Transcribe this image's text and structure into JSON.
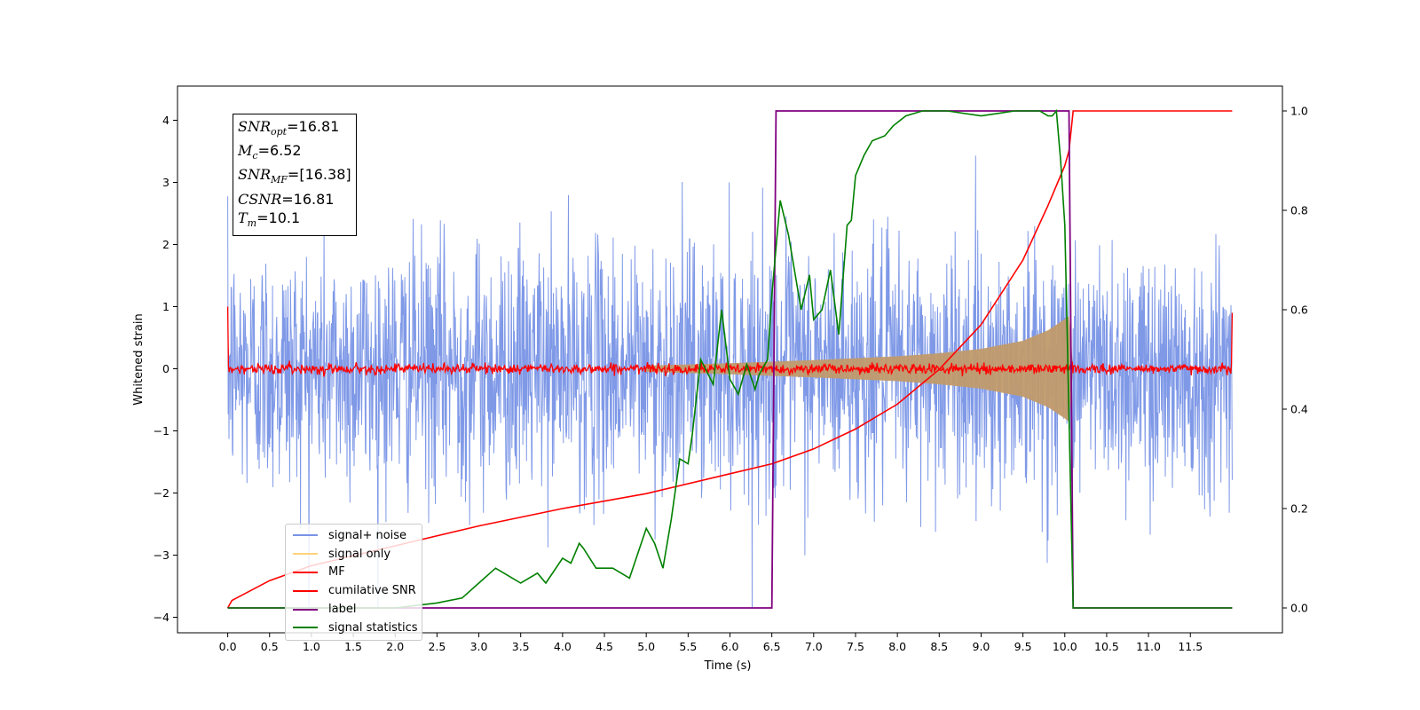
{
  "chart_data": {
    "type": "line",
    "xlabel": "Time (s)",
    "ylabel": "Whitened strain",
    "xlim": [
      -0.6,
      12.6
    ],
    "ylim": [
      -4.25,
      4.55
    ],
    "ylim_right": [
      -0.05,
      1.05
    ],
    "x_ticks": [
      "0.0",
      "0.5",
      "1.0",
      "1.5",
      "2.0",
      "2.5",
      "3.0",
      "3.5",
      "4.0",
      "4.5",
      "5.0",
      "5.5",
      "6.0",
      "6.5",
      "7.0",
      "7.5",
      "8.0",
      "8.5",
      "9.0",
      "9.5",
      "10.0",
      "10.5",
      "11.0",
      "11.5"
    ],
    "y_ticks_left": [
      "−4",
      "−3",
      "−2",
      "−1",
      "0",
      "1",
      "2",
      "3",
      "4"
    ],
    "y_ticks_right": [
      "0.0",
      "0.2",
      "0.4",
      "0.6",
      "0.8",
      "1.0"
    ],
    "grid": false,
    "legend_position": "lower-left",
    "legend": [
      {
        "label": "signal+ noise",
        "color": "#7893e6"
      },
      {
        "label": "signal only",
        "color": "#ffd27a"
      },
      {
        "label": "MF",
        "color": "#ff0000"
      },
      {
        "label": "cumilative SNR",
        "color": "#ff0000"
      },
      {
        "label": "label",
        "color": "#800080"
      },
      {
        "label": "signal statistics",
        "color": "#008000"
      }
    ],
    "annotations": {
      "snr_opt": "16.81",
      "mc": "6.52",
      "snr_mf": "[16.38]",
      "csnr": "16.81",
      "tm": "10.1"
    },
    "series": [
      {
        "name": "signal+ noise",
        "axis": "left",
        "color": "#7893e6",
        "description_values": {
          "x_range": [
            0.0,
            12.0
          ],
          "approx_std": 1.0,
          "max": 3.55,
          "min": -3.85
        }
      },
      {
        "name": "signal only",
        "axis": "left",
        "color": "#ffd27a",
        "envelope": {
          "x": [
            5.0,
            6.0,
            7.0,
            8.0,
            8.5,
            9.0,
            9.5,
            9.8,
            10.0,
            10.05,
            10.1
          ],
          "y": [
            0.05,
            0.09,
            0.14,
            0.2,
            0.25,
            0.32,
            0.45,
            0.62,
            0.8,
            0.85,
            0.0
          ]
        }
      },
      {
        "name": "MF",
        "axis": "left",
        "color": "#ff0000",
        "description_values": {
          "x_range": [
            0.0,
            12.0
          ],
          "approx_amplitude": 0.08,
          "start": 1.0,
          "end": 0.9
        }
      },
      {
        "name": "cumilative SNR",
        "axis": "right",
        "color": "#ff0000",
        "x": [
          0.0,
          0.05,
          0.5,
          1.0,
          2.0,
          3.0,
          4.0,
          5.0,
          6.0,
          6.5,
          7.0,
          7.5,
          8.0,
          8.5,
          9.0,
          9.5,
          9.8,
          10.0,
          10.05,
          10.1,
          12.0
        ],
        "y": [
          0.0,
          0.015,
          0.055,
          0.085,
          0.125,
          0.165,
          0.2,
          0.23,
          0.27,
          0.29,
          0.32,
          0.36,
          0.41,
          0.48,
          0.57,
          0.7,
          0.81,
          0.89,
          0.92,
          1.0,
          1.0
        ]
      },
      {
        "name": "label",
        "axis": "right",
        "color": "#800080",
        "x": [
          0.0,
          6.5,
          6.55,
          10.05,
          10.1,
          12.0
        ],
        "y": [
          0.0,
          0.0,
          1.0,
          1.0,
          0.0,
          0.0
        ]
      },
      {
        "name": "signal statistics",
        "axis": "right",
        "color": "#008000",
        "x": [
          0.0,
          1.0,
          2.0,
          2.5,
          2.8,
          3.0,
          3.2,
          3.4,
          3.5,
          3.7,
          3.8,
          4.0,
          4.1,
          4.2,
          4.25,
          4.4,
          4.6,
          4.8,
          5.0,
          5.1,
          5.2,
          5.3,
          5.4,
          5.5,
          5.55,
          5.65,
          5.8,
          5.9,
          6.0,
          6.1,
          6.2,
          6.3,
          6.35,
          6.45,
          6.5,
          6.6,
          6.7,
          6.85,
          6.95,
          7.0,
          7.1,
          7.2,
          7.3,
          7.4,
          7.45,
          7.5,
          7.6,
          7.7,
          7.85,
          7.95,
          8.1,
          8.3,
          8.6,
          9.0,
          9.2,
          9.4,
          9.5,
          9.7,
          9.8,
          9.85,
          9.9,
          9.95,
          10.0,
          10.1,
          10.2,
          12.0
        ],
        "y": [
          0.0,
          0.0,
          0.0,
          0.01,
          0.02,
          0.05,
          0.08,
          0.06,
          0.05,
          0.07,
          0.05,
          0.1,
          0.09,
          0.13,
          0.12,
          0.08,
          0.08,
          0.06,
          0.16,
          0.13,
          0.08,
          0.18,
          0.3,
          0.29,
          0.35,
          0.5,
          0.45,
          0.6,
          0.46,
          0.43,
          0.49,
          0.44,
          0.47,
          0.5,
          0.63,
          0.82,
          0.75,
          0.6,
          0.67,
          0.58,
          0.6,
          0.68,
          0.55,
          0.77,
          0.78,
          0.87,
          0.91,
          0.94,
          0.95,
          0.97,
          0.99,
          1.0,
          1.0,
          0.99,
          0.995,
          1.0,
          1.0,
          1.0,
          0.99,
          0.99,
          1.0,
          0.9,
          0.77,
          0.0,
          0.0,
          0.0
        ]
      }
    ]
  }
}
